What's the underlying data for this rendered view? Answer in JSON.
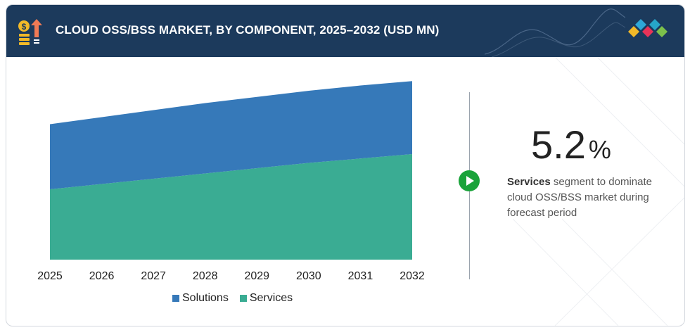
{
  "header": {
    "title": "CLOUD OSS/BSS MARKET, BY COMPONENT, 2025–2032 (USD MN)"
  },
  "colors": {
    "header_bg": "#1c3a5c",
    "solutions": "#3679b9",
    "services": "#3aac93",
    "accent_green": "#1aa33a"
  },
  "icons": {
    "header": "money-growth-icon",
    "logo": "brand-diamonds-logo",
    "play": "play-icon"
  },
  "highlight": {
    "value": "5.2",
    "unit": "%",
    "segment": "Services",
    "text": " segment to dominate cloud OSS/BSS market during forecast period"
  },
  "chart_data": {
    "type": "area",
    "stacked": true,
    "x": [
      "2025",
      "2026",
      "2027",
      "2028",
      "2029",
      "2030",
      "2031",
      "2032"
    ],
    "ylim": [
      0,
      100
    ],
    "grid": false,
    "legend_position": "bottom",
    "series": [
      {
        "name": "Services",
        "color": "#3aac93",
        "values": [
          40.0,
          43.0,
          46.0,
          49.0,
          52.0,
          55.0,
          57.5,
          60.0
        ]
      },
      {
        "name": "Solutions",
        "color": "#3679b9",
        "values": [
          37.0,
          38.0,
          39.0,
          40.0,
          40.5,
          41.0,
          41.5,
          41.5
        ]
      }
    ]
  }
}
